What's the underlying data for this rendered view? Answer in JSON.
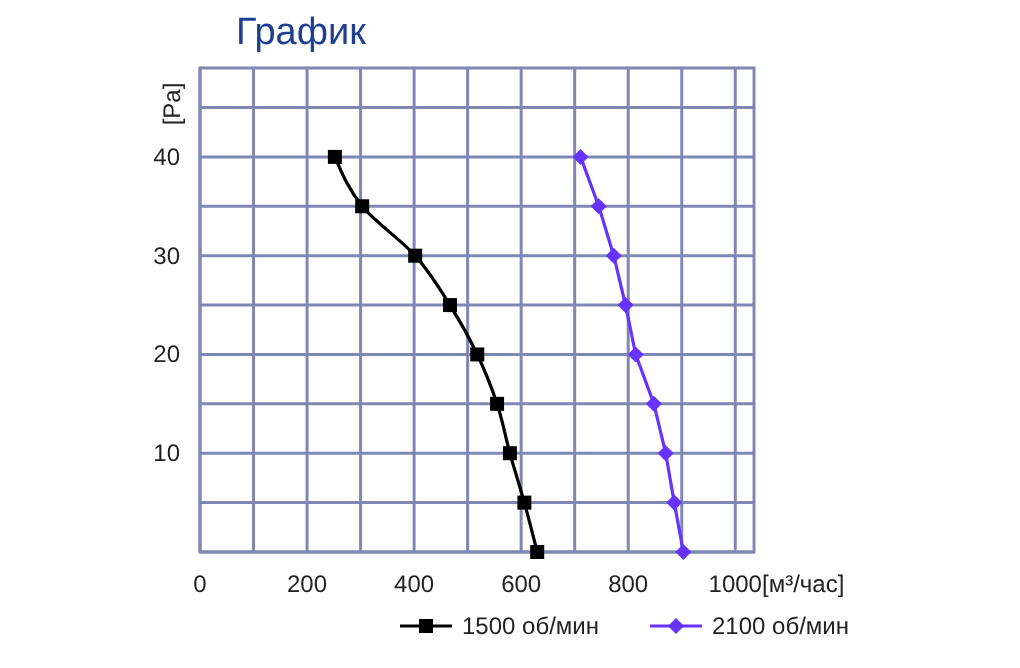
{
  "chart_data": {
    "type": "line",
    "title": "График",
    "xlabel": "[м³/час]",
    "ylabel": "[Pa]",
    "xlim": [
      0,
      1035
    ],
    "ylim": [
      0,
      49
    ],
    "xticks": [
      0,
      {
        "value": 100,
        "label": null
      },
      200,
      {
        "value": 300,
        "label": null
      },
      400,
      {
        "value": 500,
        "label": null
      },
      600,
      {
        "value": 700,
        "label": null
      },
      800,
      {
        "value": 900,
        "label": null
      },
      1000
    ],
    "yticks": [
      {
        "value": 0,
        "label": null
      },
      {
        "value": 5,
        "label": null
      },
      10,
      {
        "value": 15,
        "label": null
      },
      20,
      {
        "value": 25,
        "label": null
      },
      30,
      {
        "value": 35,
        "label": null
      },
      40,
      {
        "value": 45,
        "label": null
      }
    ],
    "grid": true,
    "legend": "bottom",
    "series": [
      {
        "name": "1500 об/мин",
        "color": "#000000",
        "marker": "square",
        "x": [
          252,
          303,
          402,
          467,
          518,
          555,
          579,
          606,
          630
        ],
        "values": [
          40,
          35,
          30,
          25,
          20,
          15,
          10,
          5,
          0
        ]
      },
      {
        "name": "2100 об/мин",
        "color": "#6633ff",
        "marker": "diamond",
        "x": [
          711,
          745,
          773,
          795,
          814,
          848,
          870,
          886,
          903
        ],
        "values": [
          40,
          35,
          30,
          25,
          20,
          15,
          10,
          5,
          0
        ]
      }
    ]
  }
}
